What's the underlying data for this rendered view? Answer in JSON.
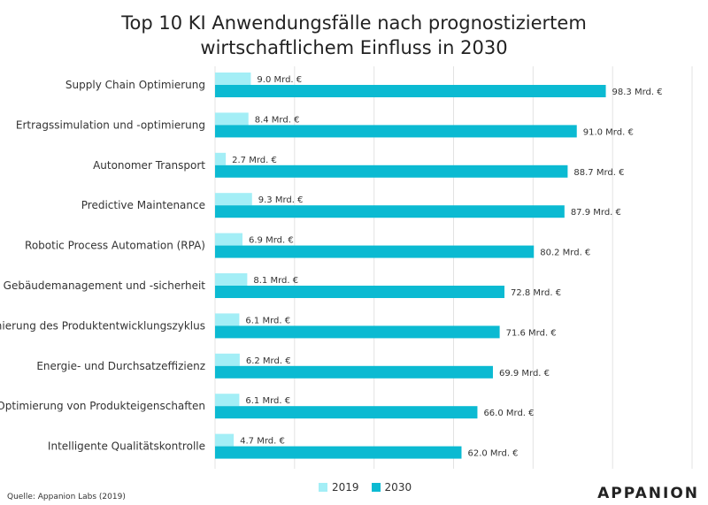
{
  "chart_data": {
    "type": "bar",
    "orientation": "horizontal",
    "title_lines": [
      "Top 10 KI Anwendungsfälle nach prognostiziertem",
      "wirtschaftlichem Einfluss in 2030"
    ],
    "categories": [
      "Supply Chain Optimierung",
      "Ertragssimulation und -optimierung",
      "Autonomer Transport",
      "Predictive Maintenance",
      "Robotic Process Automation (RPA)",
      "Gebäudemanagement und -sicherheit",
      "Optimierung des Produktentwicklungszyklus",
      "Energie- und Durchsatzeffizienz",
      "Optimierung von Produkteigenschaften",
      "Intelligente Qualitätskontrolle"
    ],
    "series": [
      {
        "name": "2019",
        "color": "#a3eef6",
        "values": [
          9.0,
          8.4,
          2.7,
          9.3,
          6.9,
          8.1,
          6.1,
          6.2,
          6.1,
          4.7
        ],
        "labels": [
          "9.0 Mrd. €",
          "8.4 Mrd. €",
          "2.7 Mrd. €",
          "9.3 Mrd. €",
          "6.9 Mrd. €",
          "8.1 Mrd. €",
          "6.1 Mrd. €",
          "6.2 Mrd. €",
          "6.1 Mrd. €",
          "4.7 Mrd. €"
        ]
      },
      {
        "name": "2030",
        "color": "#0bbad2",
        "values": [
          98.3,
          91.0,
          88.7,
          87.9,
          80.2,
          72.8,
          71.6,
          69.9,
          66.0,
          62.0
        ],
        "labels": [
          "98.3 Mrd. €",
          "91.0 Mrd. €",
          "88.7 Mrd. €",
          "87.9 Mrd. €",
          "80.2 Mrd. €",
          "72.8 Mrd. €",
          "71.6 Mrd. €",
          "69.9 Mrd. €",
          "66.0 Mrd. €",
          "62.0 Mrd. €"
        ]
      }
    ],
    "xlim": [
      0,
      120
    ],
    "grid": true,
    "legend_position": "bottom-center",
    "gridline_color": "#e3e3e3"
  },
  "source": "Quelle: Appanion Labs (2019)",
  "brand": "APPANION"
}
